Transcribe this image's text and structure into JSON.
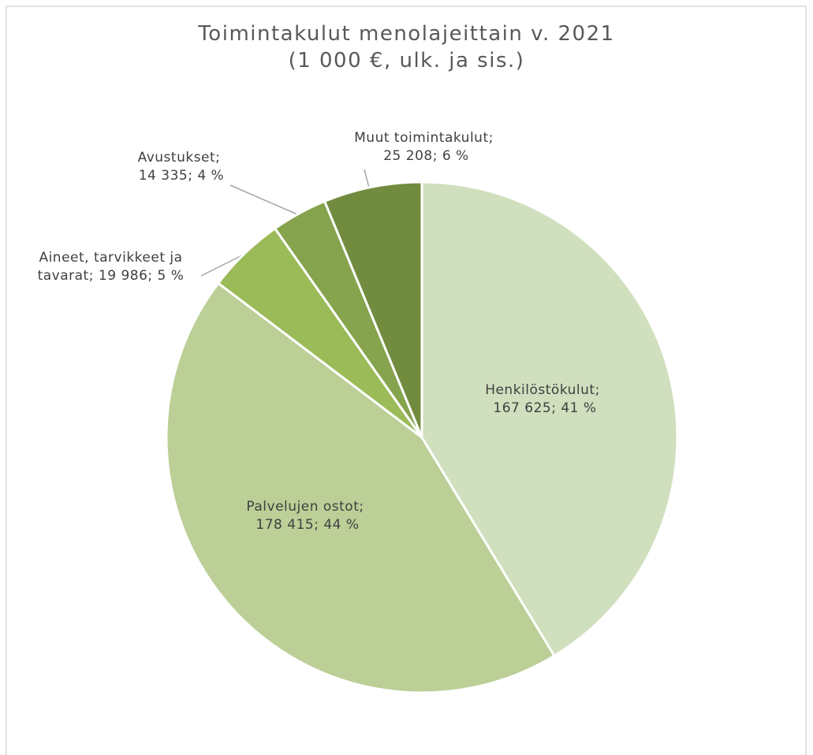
{
  "chart_data": {
    "type": "pie",
    "title": "Toimintakulut menolajeittain v. 2021",
    "subtitle": "(1 000 €, ulk. ja sis.)",
    "categories": [
      "Henkilöstökulut;",
      "Palvelujen ostot;",
      "Aineet, tarvikkeet ja tavarat;",
      "Avustukset;",
      "Muut toimintakulut;"
    ],
    "values": [
      167625,
      178415,
      19986,
      14335,
      25208
    ],
    "value_labels": [
      "167 625; 41 %",
      "178 415; 44 %",
      "19 986; 5 %",
      "14 335; 4 %",
      "25 208; 6 %"
    ],
    "colors": [
      "#d0dfbd",
      "#bbcf96",
      "#9bbb59",
      "#86a34d",
      "#718c3f"
    ]
  }
}
